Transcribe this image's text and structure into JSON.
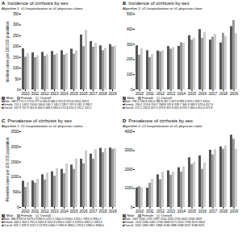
{
  "chart_data": [
    {
      "type": "bar",
      "panel_label": "A",
      "title": "Incidence of cirrhosis by sex",
      "subtitle": "Algorithm 1: ≥1 hospitalization or ≥2 physician claims",
      "ylabel": "Incident cases per 100,000 population",
      "categories": [
        "2010",
        "2011",
        "2012",
        "2013",
        "2014",
        "2015",
        "2016",
        "2017",
        "2018",
        "2019"
      ],
      "series": [
        {
          "name": "Male",
          "color": "#555555",
          "row_label": "■Male",
          "values": [
            189.9,
            171.1,
            173.6,
            177.4,
            180.8,
            188.2,
            253.9,
            223.6,
            203.6,
            209.3
          ],
          "value_labels": [
            "189.9",
            "171.1",
            "173.6",
            "177.4",
            "180.8",
            "188.2",
            "253.9",
            "223.6",
            "203.6",
            "209.3"
          ]
        },
        {
          "name": "Female",
          "color": "#999999",
          "row_label": "■Female",
          "values": [
            151.1,
            149.2,
            154.6,
            160.6,
            160.7,
            165.2,
            199.7,
            197.6,
            181.3,
            198.2
          ],
          "value_labels": [
            "151.1",
            "149.2",
            "154.6",
            "160.6",
            "160.7",
            "165.2",
            "199.7",
            "197.6",
            "181.3",
            "198.2"
          ]
        },
        {
          "name": "Overall",
          "color": "#cccccc",
          "row_label": "■Overall",
          "values": [
            167.9,
            157.9,
            162.8,
            166.9,
            168.3,
            180.0,
            275.8,
            214.4,
            192.2,
            202.1
          ],
          "value_labels": [
            "167.9",
            "157.9",
            "162.8",
            "166.9",
            "168.3",
            "180.0",
            "275.8",
            "214.4",
            "192.2",
            "202.1"
          ]
        }
      ],
      "ylim": [
        0,
        350
      ],
      "yticks": [
        0,
        50,
        100,
        150,
        200,
        250,
        300,
        350
      ],
      "grid": false,
      "legend": "bottom"
    },
    {
      "type": "bar",
      "panel_label": "B",
      "title": "Incidence of cirrhosis by sex",
      "subtitle": "Algorithm 2: ≥1 hospitalization or ≥1 physician claim",
      "categories": [
        "2010",
        "2011",
        "2012",
        "2013",
        "2014",
        "2015",
        "2016",
        "2017",
        "2018",
        "2019"
      ],
      "series": [
        {
          "name": "Male",
          "color": "#555555",
          "row_label": "■Male",
          "values": [
            290.5,
            258.8,
            256.6,
            286.8,
            287.5,
            357.8,
            398.3,
            329.2,
            309.7,
            418.0
          ],
          "value_labels": [
            "290.5",
            "258.8",
            "256.6",
            "286.8",
            "287.5",
            "357.8",
            "398.3",
            "329.2",
            "309.7",
            "418.0"
          ]
        },
        {
          "name": "Female",
          "color": "#999999",
          "row_label": "■Female",
          "values": [
            230.2,
            213.8,
            250.7,
            268.8,
            311.8,
            328.7,
            340.3,
            348.3,
            373.4,
            457.3
          ],
          "value_labels": [
            "230.2",
            "213.8",
            "250.7",
            "268.8",
            "311.8",
            "328.7",
            "340.3",
            "348.3",
            "373.4",
            "457.3"
          ]
        },
        {
          "name": "Overall",
          "color": "#cccccc",
          "row_label": "■Overall",
          "values": [
            271.2,
            232.8,
            257.3,
            279.8,
            307.8,
            341.8,
            378.1,
            366.0,
            351.4,
            371.8
          ],
          "value_labels": [
            "271.2",
            "232.8",
            "257.3",
            "279.8",
            "307.8",
            "341.8",
            "378.1",
            "366.0",
            "351.4",
            "371.8"
          ]
        }
      ],
      "ylim": [
        0,
        500
      ],
      "yticks": [
        0,
        100,
        200,
        300,
        400,
        500
      ],
      "grid": false,
      "legend": "bottom"
    },
    {
      "type": "bar",
      "panel_label": "C",
      "title": "Prevalence of cirrhosis by sex",
      "subtitle": "Algorithm 1: ≥1 hospitalization or ≥2 physician claims",
      "ylabel": "Prevalent cases per 100,000 population",
      "categories": [
        "2010",
        "2011",
        "2012",
        "2013",
        "2014",
        "2015",
        "2016",
        "2017",
        "2018",
        "2019"
      ],
      "series": [
        {
          "name": "Male",
          "color": "#555555",
          "row_label": "■Male",
          "values": [
            866.8,
            872.8,
            1079.4,
            1180.9,
            1257.2,
            1400.3,
            1594.6,
            1760.1,
            1954.3,
            1962.2
          ],
          "value_labels": [
            "866.8",
            "872.8",
            "1079.4",
            "1180.9",
            "1257.2",
            "1400.3",
            "1594.6",
            "1760.1",
            "1954.3",
            "1962.2"
          ]
        },
        {
          "name": "Female",
          "color": "#999999",
          "row_label": "■Female",
          "values": [
            664.1,
            802.1,
            911.3,
            1031.8,
            1111.8,
            1260.0,
            1437.3,
            1593.0,
            1807.2,
            1922.4
          ],
          "value_labels": [
            "664.1",
            "802.1",
            "911.3",
            "1031.8",
            "1111.8",
            "1260.0",
            "1437.3",
            "1593.0",
            "1807.2",
            "1922.4"
          ]
        },
        {
          "name": "Overall",
          "color": "#cccccc",
          "row_label": "■Overall",
          "values": [
            822.1,
            929.3,
            1137.2,
            1279.8,
            1434.2,
            1596.8,
            1866.1,
            1913.2,
            1946.0,
            1946.0
          ],
          "value_labels": [
            "822.1",
            "929.3",
            "1137.2",
            "1279.8",
            "1434.2",
            "1596.8",
            "1866.1",
            "1913.2",
            "1946.0",
            "1946.0"
          ]
        }
      ],
      "ylim": [
        0,
        2500
      ],
      "yticks": [
        0,
        500,
        1000,
        1500,
        2000,
        2500
      ],
      "grid": false,
      "legend": "bottom"
    },
    {
      "type": "bar",
      "panel_label": "D",
      "title": "Prevalence of cirrhosis by sex",
      "subtitle": "Algorithm 2: ≥1 hospitalization or ≥1 physician claim",
      "categories": [
        "2010",
        "2011",
        "2012",
        "2013",
        "2014",
        "2015",
        "2016",
        "2017",
        "2018",
        "2019"
      ],
      "series": [
        {
          "name": "Male",
          "color": "#555555",
          "row_label": "■Male",
          "values": [
            1037,
            1020,
            1725,
            1937,
            2100,
            2625,
            2724,
            3021,
            3200,
            3819
          ],
          "value_labels": [
            "1037",
            "1020",
            "1725",
            "1937",
            "2100",
            "2625",
            "2724",
            "3021",
            "3200",
            "3819"
          ]
        },
        {
          "name": "Female",
          "color": "#999999",
          "row_label": "■Female",
          "values": [
            1102,
            1280,
            1461,
            1708,
            1868,
            2271,
            2015,
            2780,
            3075,
            3602
          ],
          "value_labels": [
            "1102",
            "1280",
            "1461",
            "1708",
            "1868",
            "2271",
            "2015",
            "2780",
            "3075",
            "3602"
          ]
        },
        {
          "name": "Overall",
          "color": "#cccccc",
          "row_label": "■Overall",
          "values": [
            1052,
            1494,
            1857,
            1868,
            2148,
            2388,
            2348,
            3057,
            3248,
            3071
          ],
          "value_labels": [
            "1052",
            "1494",
            "1857",
            "1868",
            "2148",
            "2388",
            "2348",
            "3057",
            "3248",
            "3071"
          ]
        }
      ],
      "ylim": [
        0,
        4000
      ],
      "yticks": [
        0,
        1000,
        2000,
        3000,
        4000
      ],
      "grid": false,
      "legend": "bottom"
    }
  ]
}
